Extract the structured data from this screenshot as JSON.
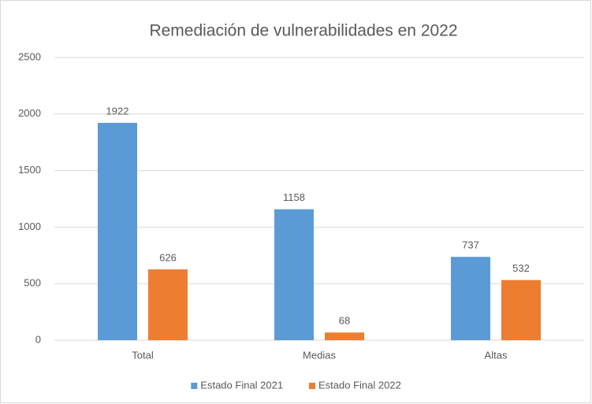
{
  "chart_data": {
    "type": "bar",
    "title": "Remediación de vulnerabilidades  en 2022",
    "categories": [
      "Total",
      "Medias",
      "Altas"
    ],
    "series": [
      {
        "name": "Estado Final 2021",
        "color": "#5b9bd5",
        "values": [
          1922,
          1158,
          737
        ]
      },
      {
        "name": "Estado Final 2022",
        "color": "#ed7d31",
        "values": [
          626,
          68,
          532
        ]
      }
    ],
    "ylim": [
      0,
      2500
    ],
    "yticks": [
      0,
      500,
      1000,
      1500,
      2000,
      2500
    ],
    "grid": true,
    "legend": "bottom"
  }
}
